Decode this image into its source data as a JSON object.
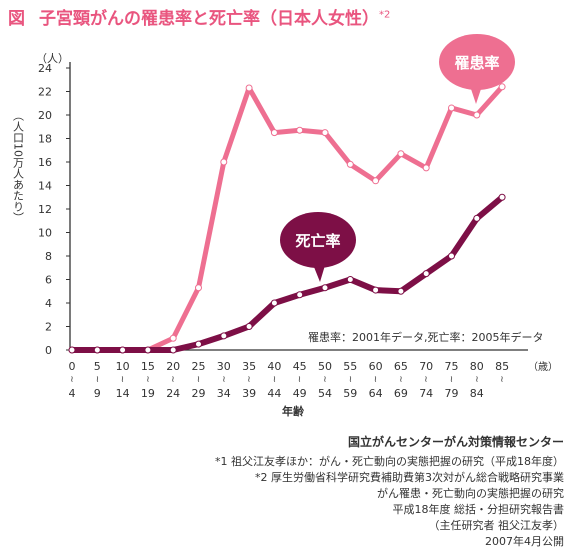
{
  "figure": {
    "label": "図",
    "title": "子宮頸がんの罹患率と死亡率（日本人女性）",
    "title_sup": "*2"
  },
  "chart_data": {
    "type": "line",
    "categories": [
      [
        "0",
        "4"
      ],
      [
        "5",
        "9"
      ],
      [
        "10",
        "14"
      ],
      [
        "15",
        "19"
      ],
      [
        "20",
        "24"
      ],
      [
        "25",
        "29"
      ],
      [
        "30",
        "34"
      ],
      [
        "35",
        "39"
      ],
      [
        "40",
        "44"
      ],
      [
        "45",
        "49"
      ],
      [
        "50",
        "54"
      ],
      [
        "55",
        "59"
      ],
      [
        "60",
        "64"
      ],
      [
        "65",
        "69"
      ],
      [
        "70",
        "74"
      ],
      [
        "75",
        "79"
      ],
      [
        "80",
        "84"
      ],
      [
        "85",
        ""
      ]
    ],
    "x_unit": "（歳）",
    "xlabel": "年齢",
    "y_unit": "（人）",
    "ylabel": "（人口10万人あたり）",
    "ylim": [
      0,
      24
    ],
    "yticks": [
      0,
      2,
      4,
      6,
      8,
      10,
      12,
      14,
      16,
      18,
      20,
      22,
      24
    ],
    "series": [
      {
        "name": "罹患率",
        "color": "#ee6f91",
        "values": [
          0,
          0,
          0,
          0,
          1,
          5.3,
          16,
          22.3,
          18.5,
          18.7,
          18.5,
          15.8,
          14.4,
          16.7,
          15.5,
          20.6,
          20,
          22.4
        ]
      },
      {
        "name": "死亡率",
        "color": "#7d0f46",
        "values": [
          0,
          0,
          0,
          0,
          0,
          0.5,
          1.2,
          2,
          4,
          4.7,
          5.3,
          6,
          5.1,
          5,
          6.5,
          8,
          11.2,
          13
        ]
      }
    ],
    "source_note": "罹患率：2001年データ,死亡率：2005年データ",
    "grid": false
  },
  "notes": {
    "center": "国立がんセンターがん対策情報センター",
    "note1": "*1 祖父江友孝ほか：がん・死亡動向の実態把握の研究（平成18年度）",
    "note2": "*2 厚生労働省科学研究費補助費第3次対がん総合戦略研究事業",
    "note3": "がん罹患・死亡動向の実態把握の研究",
    "note4": "平成18年度 総括・分担研究報告書",
    "note5": "（主任研究者 祖父江友孝）",
    "note6": "2007年4月公開"
  }
}
